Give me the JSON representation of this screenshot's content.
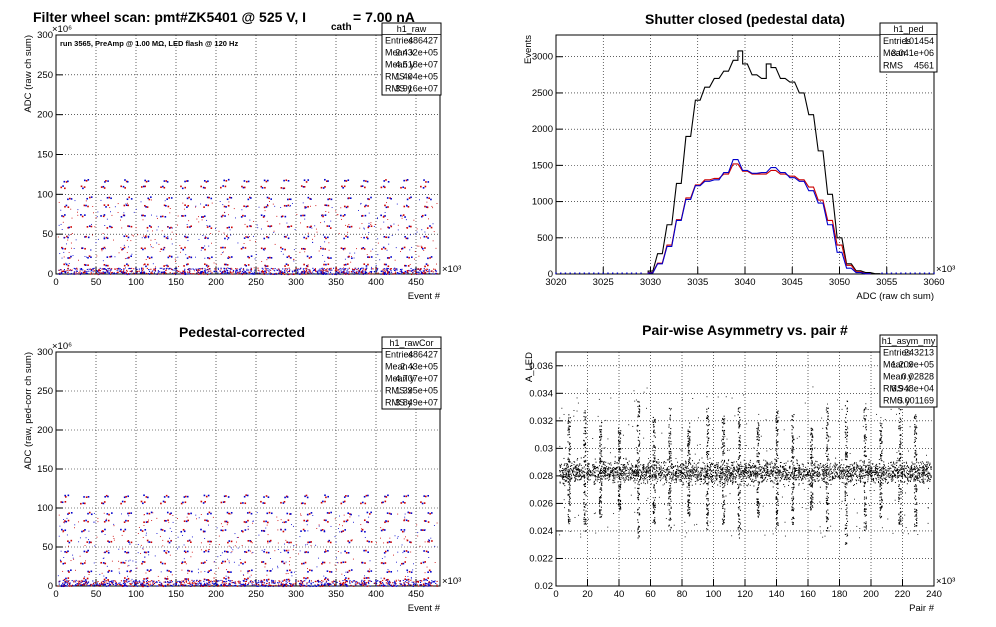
{
  "page_title": {
    "text_a": "Filter wheel scan: pmt#ZK5401 @   525 V, I",
    "sub": "cath",
    "text_b": " = 7.00 nA"
  },
  "chart_data": [
    {
      "id": "raw",
      "type": "scatter",
      "title": "",
      "annotation": "run 3565, PreAmp @ 1.00 MΩ, LED flash @  120 Hz",
      "xlabel": "Event #",
      "ylabel": "ADC (raw ch sum)",
      "xlim": [
        0,
        480
      ],
      "ylim": [
        0,
        300
      ],
      "xticks": [
        0,
        50,
        100,
        150,
        200,
        250,
        300,
        350,
        400,
        450
      ],
      "yticks": [
        0,
        50,
        100,
        150,
        200,
        250,
        300
      ],
      "x_exponent": "×10³",
      "y_exponent": "×10⁶",
      "grid": true,
      "band_levels": [
        3,
        12,
        22,
        33,
        47,
        60,
        74,
        86,
        96,
        110,
        118
      ],
      "band_period": 25,
      "series_colors": [
        "#0000cc",
        "#cc0000"
      ],
      "stats": {
        "name": "h1_raw",
        "rows": [
          {
            "k": "Entries",
            "v": "486427"
          },
          {
            "k": "Mean x",
            "v": "2.432e+05"
          },
          {
            "k": "Mean y",
            "v": "4.518e+07"
          },
          {
            "k": "RMS x",
            "v": "1.404e+05"
          },
          {
            "k": "RMS y",
            "v": "3.916e+07"
          }
        ]
      }
    },
    {
      "id": "ped",
      "type": "line",
      "title": "Shutter closed (pedestal data)",
      "xlabel": "ADC (raw ch sum)",
      "ylabel": "Events",
      "xlim": [
        3020,
        3060
      ],
      "ylim": [
        0,
        3300
      ],
      "xticks": [
        3020,
        3025,
        3030,
        3035,
        3040,
        3045,
        3050,
        3055,
        3060
      ],
      "yticks": [
        0,
        500,
        1000,
        1500,
        2000,
        2500,
        3000
      ],
      "x_exponent": "×10³",
      "grid": true,
      "bin_width": 0.5,
      "series": [
        {
          "color": "#000000",
          "x": [
            3030,
            3031,
            3032,
            3033,
            3034,
            3035,
            3036,
            3037,
            3038,
            3039,
            3039.5,
            3040,
            3041,
            3042,
            3042.5,
            3043,
            3044,
            3045,
            3046,
            3047,
            3048,
            3049,
            3050,
            3051,
            3052,
            3053,
            3054
          ],
          "values": [
            40,
            280,
            680,
            1250,
            1900,
            2400,
            2580,
            2700,
            2800,
            2950,
            3080,
            2900,
            2750,
            2700,
            2900,
            2850,
            2700,
            2650,
            2500,
            2200,
            1700,
            1100,
            500,
            140,
            45,
            20,
            5
          ]
        },
        {
          "color": "#cc0000",
          "x": [
            3030,
            3031,
            3032,
            3033,
            3034,
            3035,
            3036,
            3037,
            3038,
            3039,
            3040,
            3041,
            3042,
            3043,
            3044,
            3045,
            3046,
            3047,
            3048,
            3049,
            3050,
            3051,
            3052,
            3053
          ],
          "values": [
            20,
            150,
            400,
            750,
            1050,
            1230,
            1300,
            1320,
            1380,
            1520,
            1420,
            1380,
            1380,
            1430,
            1380,
            1350,
            1300,
            1200,
            1020,
            740,
            400,
            120,
            30,
            5
          ]
        },
        {
          "color": "#0000cc",
          "x": [
            3030,
            3031,
            3032,
            3033,
            3034,
            3035,
            3036,
            3037,
            3038,
            3039,
            3040,
            3041,
            3042,
            3043,
            3044,
            3045,
            3046,
            3047,
            3048,
            3049,
            3050,
            3051,
            3052,
            3053
          ],
          "values": [
            15,
            140,
            380,
            740,
            1030,
            1220,
            1280,
            1300,
            1400,
            1580,
            1430,
            1390,
            1400,
            1470,
            1400,
            1330,
            1280,
            1150,
            980,
            680,
            300,
            80,
            20,
            5
          ]
        }
      ],
      "stats": {
        "name": "h1_ped",
        "rows": [
          {
            "k": "Entries",
            "v": "101454"
          },
          {
            "k": "Mean",
            "v": "3.041e+06"
          },
          {
            "k": "RMS",
            "v": "4561"
          }
        ]
      }
    },
    {
      "id": "rawCor",
      "type": "scatter",
      "title": "Pedestal-corrected",
      "xlabel": "Event #",
      "ylabel": "ADC (raw, ped-corr ch sum)",
      "xlim": [
        0,
        480
      ],
      "ylim": [
        0,
        300
      ],
      "xticks": [
        0,
        50,
        100,
        150,
        200,
        250,
        300,
        350,
        400,
        450
      ],
      "yticks": [
        0,
        50,
        100,
        150,
        200,
        250,
        300
      ],
      "x_exponent": "×10³",
      "y_exponent": "×10⁶",
      "grid": true,
      "band_levels": [
        2,
        10,
        20,
        31,
        45,
        58,
        72,
        84,
        94,
        108,
        116
      ],
      "band_period": 25,
      "series_colors": [
        "#0000cc",
        "#cc0000"
      ],
      "stats": {
        "name": "h1_rawCor",
        "rows": [
          {
            "k": "Entries",
            "v": "486427"
          },
          {
            "k": "Mean x",
            "v": "2.43e+05"
          },
          {
            "k": "Mean y",
            "v": "4.707e+07"
          },
          {
            "k": "RMS x",
            "v": "1.395e+05"
          },
          {
            "k": "RMS y",
            "v": "3.849e+07"
          }
        ]
      }
    },
    {
      "id": "asym",
      "type": "scatter",
      "title": "Pair-wise Asymmetry vs. pair #",
      "xlabel": "Pair #",
      "ylabel": "A_LED",
      "xlim": [
        0,
        240
      ],
      "ylim": [
        0.02,
        0.037
      ],
      "xticks": [
        0,
        20,
        40,
        60,
        80,
        100,
        120,
        140,
        160,
        180,
        200,
        220,
        240
      ],
      "yticks": [
        0.02,
        0.022,
        0.024,
        0.026,
        0.028,
        0.03,
        0.032,
        0.034,
        0.036
      ],
      "x_exponent": "×10³",
      "grid": true,
      "band_center": 0.0283,
      "band_halfwidth": 0.0007,
      "spike_x": [
        8,
        18,
        28,
        40,
        52,
        62,
        72,
        84,
        96,
        106,
        116,
        128,
        140,
        150,
        162,
        172,
        184,
        196,
        206,
        218,
        228
      ],
      "spike_top": [
        0.0325,
        0.033,
        0.032,
        0.0315,
        0.0335,
        0.0325,
        0.033,
        0.032,
        0.033,
        0.0325,
        0.033,
        0.032,
        0.033,
        0.0325,
        0.0315,
        0.033,
        0.0335,
        0.033,
        0.032,
        0.033,
        0.0325
      ],
      "spike_bottom": [
        0.0245,
        0.024,
        0.025,
        0.0255,
        0.0235,
        0.0245,
        0.024,
        0.025,
        0.024,
        0.0245,
        0.0235,
        0.025,
        0.024,
        0.0245,
        0.0255,
        0.024,
        0.023,
        0.024,
        0.025,
        0.0245,
        0.024
      ],
      "stats": {
        "name": "h1_asym_my",
        "rows": [
          {
            "k": "Entries",
            "v": "243213"
          },
          {
            "k": "Mean x",
            "v": "1.209e+05"
          },
          {
            "k": "Mean y",
            "v": "0.02828"
          },
          {
            "k": "RMS x",
            "v": "6.948e+04"
          },
          {
            "k": "RMS y",
            "v": "0.001169"
          }
        ]
      }
    }
  ]
}
